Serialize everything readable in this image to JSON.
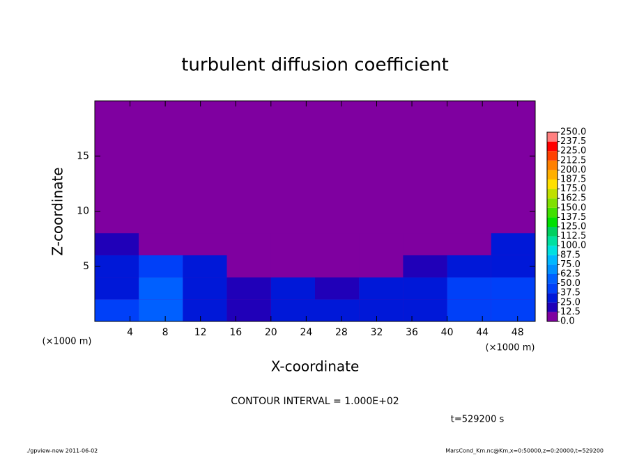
{
  "chart_data": {
    "type": "contour",
    "title": "turbulent diffusion coefficient",
    "x_label": "X-coordinate",
    "y_label": "Z-coordinate",
    "x_unit": "(×1000 m)",
    "y_unit": "(×1000 m)",
    "xlim": [
      0,
      50
    ],
    "ylim": [
      0,
      20
    ],
    "xticks": [
      4,
      8,
      12,
      16,
      20,
      24,
      28,
      32,
      36,
      40,
      44,
      48
    ],
    "yticks": [
      5,
      10,
      15
    ],
    "x": [
      0,
      5,
      10,
      15,
      20,
      25,
      30,
      35,
      40,
      45,
      50
    ],
    "z": [
      0,
      2,
      4,
      6,
      8
    ],
    "values": [
      [
        40,
        60,
        30,
        20,
        30,
        30,
        25,
        30,
        40,
        45
      ],
      [
        35,
        55,
        30,
        20,
        25,
        20,
        25,
        35,
        40,
        40
      ],
      [
        30,
        40,
        25,
        5,
        10,
        10,
        10,
        20,
        35,
        35
      ],
      [
        20,
        5,
        0,
        0,
        0,
        0,
        0,
        0,
        10,
        30
      ]
    ],
    "levels": [
      {
        "value": 0,
        "label": "0.0"
      },
      12.5,
      {
        "value": 25,
        "label": "25.0"
      },
      37.5,
      {
        "value": 50,
        "label": "50.0"
      },
      62.5,
      {
        "value": 75,
        "label": "75.0"
      },
      87.5,
      {
        "value": 100,
        "label": "100.0"
      },
      112.5,
      {
        "value": 125,
        "label": "125.0"
      },
      137.5,
      {
        "value": 150,
        "label": "150.0"
      },
      162.5,
      {
        "value": 175,
        "label": "175.0"
      },
      187.5,
      {
        "value": 200,
        "label": "200.0"
      },
      212.5,
      {
        "value": 225,
        "label": "225.0"
      },
      237.5,
      {
        "value": 250,
        "label": "250.0"
      }
    ],
    "colors": [
      "#7f00a0",
      "#2000b8",
      "#0018d8",
      "#0040f8",
      "#0060ff",
      "#0090ff",
      "#00b8ff",
      "#00e0e0",
      "#00e0a0",
      "#00d060",
      "#00e000",
      "#40e000",
      "#80e000",
      "#c0e000",
      "#ffe000",
      "#ffb000",
      "#ff8000",
      "#ff4000",
      "#ff0000",
      "#ff8080"
    ],
    "contour_interval": "CONTOUR INTERVAL = 1.000E+02",
    "time": "t=529200 s",
    "footer_left": "./gpview-new   2011-06-02",
    "footer_right": "MarsCond_Km.nc@Km,x=0:50000,z=0:20000,t=529200"
  }
}
